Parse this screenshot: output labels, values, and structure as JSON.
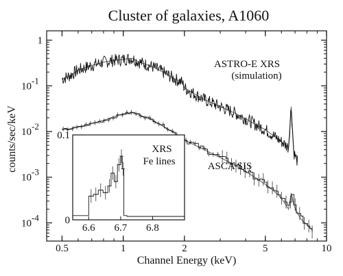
{
  "chart_data": {
    "type": "line",
    "title": "Cluster of galaxies, A1060",
    "xlabel": "Channel Energy (keV)",
    "ylabel": "counts/sec/keV",
    "xscale": "log",
    "yscale": "log",
    "xlim": [
      0.42,
      10
    ],
    "ylim": [
      4e-05,
      1.6
    ],
    "grid": false,
    "xticks": [
      {
        "value": 0.5,
        "label": "0.5"
      },
      {
        "value": 1,
        "label": "1"
      },
      {
        "value": 2,
        "label": "2"
      },
      {
        "value": 5,
        "label": "5"
      },
      {
        "value": 10,
        "label": "10"
      }
    ],
    "yticks": [
      {
        "value": 1,
        "label": "1"
      },
      {
        "value": 0.1,
        "label": "10",
        "exp": "-1"
      },
      {
        "value": 0.01,
        "label": "10",
        "exp": "-2"
      },
      {
        "value": 0.001,
        "label": "10",
        "exp": "-3"
      },
      {
        "value": 0.0001,
        "label": "10",
        "exp": "-4"
      }
    ],
    "series": [
      {
        "name": "ASTRO-E XRS",
        "note": "(simulation)",
        "x": [
          0.5,
          0.55,
          0.6,
          0.7,
          0.8,
          0.9,
          1.0,
          1.1,
          1.2,
          1.4,
          1.6,
          1.8,
          1.95,
          2.0,
          2.2,
          2.5,
          3.0,
          3.5,
          4.0,
          4.5,
          5.0,
          5.5,
          6.0,
          6.5,
          6.7,
          6.9,
          7.2
        ],
        "y": [
          0.14,
          0.17,
          0.22,
          0.28,
          0.33,
          0.36,
          0.38,
          0.4,
          0.33,
          0.26,
          0.19,
          0.14,
          0.12,
          0.09,
          0.07,
          0.05,
          0.035,
          0.026,
          0.019,
          0.014,
          0.011,
          0.008,
          0.006,
          0.0045,
          0.035,
          0.0035,
          0.0022
        ]
      },
      {
        "name": "ASCA SIS",
        "x": [
          0.5,
          0.55,
          0.6,
          0.7,
          0.8,
          0.9,
          1.0,
          1.1,
          1.2,
          1.4,
          1.6,
          1.8,
          2.0,
          2.2,
          2.5,
          3.0,
          3.5,
          4.0,
          4.5,
          5.0,
          5.5,
          6.0,
          6.3,
          6.5,
          6.7,
          6.9,
          7.2,
          7.5,
          8.0,
          8.5
        ],
        "y": [
          0.011,
          0.0115,
          0.0125,
          0.015,
          0.0175,
          0.021,
          0.0245,
          0.026,
          0.023,
          0.0175,
          0.0125,
          0.009,
          0.0065,
          0.0053,
          0.004,
          0.0027,
          0.0019,
          0.00135,
          0.00095,
          0.0007,
          0.0005,
          0.00035,
          0.00025,
          0.0002,
          0.00045,
          0.00025,
          0.00016,
          0.00012,
          9e-05,
          7e-05
        ]
      }
    ],
    "inset": {
      "label1": "XRS",
      "label2": "Fe lines",
      "xlim": [
        6.55,
        6.9
      ],
      "ylim": [
        0,
        0.1
      ],
      "xticks": [
        {
          "value": 6.6,
          "label": "6.6"
        },
        {
          "value": 6.7,
          "label": "6.7"
        },
        {
          "value": 6.8,
          "label": "6.8"
        }
      ],
      "yticks": [
        {
          "value": 0,
          "label": "0"
        },
        {
          "value": 0.1,
          "label": "0.1"
        }
      ],
      "x": [
        6.55,
        6.59,
        6.6,
        6.615,
        6.63,
        6.645,
        6.66,
        6.67,
        6.68,
        6.69,
        6.7,
        6.705,
        6.71,
        6.72,
        6.9
      ],
      "y": [
        0.005,
        0.005,
        0.028,
        0.03,
        0.035,
        0.032,
        0.04,
        0.055,
        0.045,
        0.065,
        0.075,
        0.06,
        0.005,
        0.004,
        0.004
      ]
    }
  }
}
